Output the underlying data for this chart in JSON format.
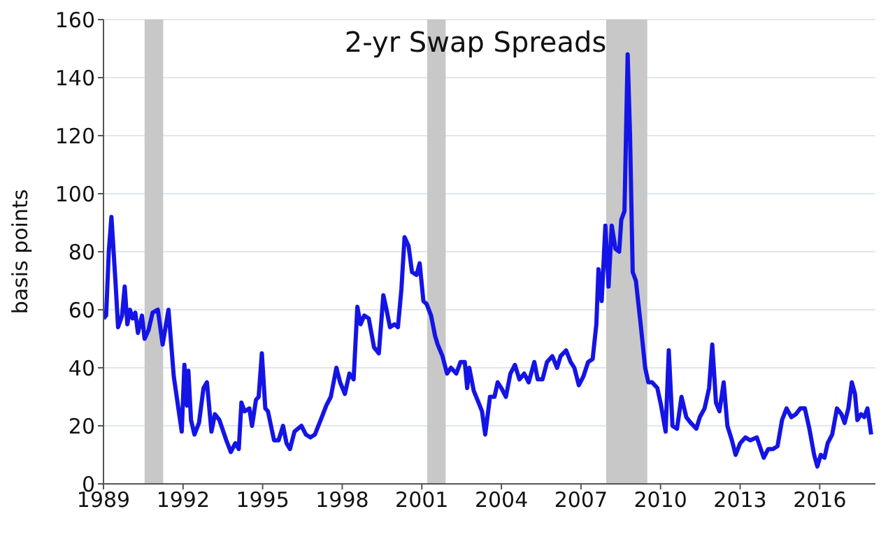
{
  "chart_data": {
    "type": "line",
    "title": "2-yr Swap Spreads",
    "ylabel": "basis points",
    "xlim": [
      1989,
      2018.1
    ],
    "xticks": [
      1989,
      1992,
      1995,
      1998,
      2001,
      2004,
      2007,
      2010,
      2013,
      2016
    ],
    "ylim": [
      0,
      160
    ],
    "yticks": [
      0,
      20,
      40,
      60,
      80,
      100,
      120,
      140,
      160
    ],
    "grid": "y",
    "marker": "none",
    "line_style": "solid",
    "bands": [
      {
        "axis": "x",
        "from": 1990.55,
        "to": 1991.25,
        "color": "#c8c8c8"
      },
      {
        "axis": "x",
        "from": 2001.2,
        "to": 2001.9,
        "color": "#c8c8c8"
      },
      {
        "axis": "x",
        "from": 2007.95,
        "to": 2009.5,
        "color": "#c8c8c8"
      }
    ],
    "series": [
      {
        "color": "#1414e6",
        "x": [
          1989.0,
          1989.1,
          1989.2,
          1989.3,
          1989.45,
          1989.55,
          1989.7,
          1989.8,
          1989.9,
          1990.0,
          1990.1,
          1990.2,
          1990.3,
          1990.45,
          1990.55,
          1990.7,
          1990.85,
          1991.05,
          1991.23,
          1991.45,
          1991.65,
          1991.95,
          1992.05,
          1992.15,
          1992.2,
          1992.3,
          1992.43,
          1992.6,
          1992.77,
          1992.9,
          1993.07,
          1993.2,
          1993.37,
          1993.63,
          1993.8,
          1993.97,
          1994.1,
          1994.2,
          1994.32,
          1994.5,
          1994.6,
          1994.75,
          1994.85,
          1994.97,
          1995.1,
          1995.2,
          1995.43,
          1995.6,
          1995.77,
          1995.9,
          1996.03,
          1996.2,
          1996.46,
          1996.63,
          1996.8,
          1996.97,
          1997.23,
          1997.4,
          1997.57,
          1997.78,
          1997.92,
          1998.1,
          1998.27,
          1998.43,
          1998.57,
          1998.69,
          1998.83,
          1999.0,
          1999.2,
          1999.38,
          1999.55,
          1999.67,
          1999.8,
          1999.97,
          2000.1,
          2000.23,
          2000.35,
          2000.5,
          2000.63,
          2000.8,
          2000.92,
          2001.06,
          2001.18,
          2001.35,
          2001.5,
          2001.6,
          2001.78,
          2001.95,
          2002.1,
          2002.3,
          2002.46,
          2002.62,
          2002.71,
          2002.79,
          2002.96,
          2003.14,
          2003.27,
          2003.39,
          2003.57,
          2003.74,
          2003.86,
          2004.0,
          2004.17,
          2004.34,
          2004.51,
          2004.68,
          2004.86,
          2005.03,
          2005.24,
          2005.37,
          2005.55,
          2005.72,
          2005.92,
          2006.1,
          2006.23,
          2006.44,
          2006.61,
          2006.75,
          2006.92,
          2007.09,
          2007.27,
          2007.44,
          2007.58,
          2007.66,
          2007.78,
          2007.92,
          2008.04,
          2008.16,
          2008.3,
          2008.44,
          2008.52,
          2008.64,
          2008.76,
          2008.85,
          2008.95,
          2009.07,
          2009.25,
          2009.42,
          2009.54,
          2009.68,
          2009.88,
          2010.02,
          2010.19,
          2010.31,
          2010.45,
          2010.62,
          2010.79,
          2010.97,
          2011.14,
          2011.35,
          2011.48,
          2011.66,
          2011.83,
          2011.95,
          2012.09,
          2012.22,
          2012.38,
          2012.52,
          2012.69,
          2012.83,
          2013.0,
          2013.2,
          2013.38,
          2013.63,
          2013.89,
          2014.06,
          2014.24,
          2014.41,
          2014.58,
          2014.75,
          2014.93,
          2015.1,
          2015.27,
          2015.44,
          2015.61,
          2015.79,
          2015.91,
          2016.04,
          2016.18,
          2016.3,
          2016.47,
          2016.65,
          2016.82,
          2016.94,
          2017.08,
          2017.21,
          2017.33,
          2017.42,
          2017.56,
          2017.68,
          2017.8,
          2017.94
        ],
        "values": [
          57,
          58,
          80,
          92,
          70,
          54,
          58,
          68,
          55,
          60,
          57,
          59,
          52,
          58,
          50,
          53,
          59,
          60,
          48,
          60,
          37,
          18,
          41,
          27,
          39,
          22,
          17,
          21,
          33,
          35,
          18,
          24,
          22,
          15,
          11,
          14,
          12,
          28,
          25,
          26,
          20,
          29,
          30,
          45,
          26,
          25,
          15,
          15,
          20,
          14,
          12,
          18,
          20,
          17,
          16,
          17,
          23,
          27,
          30,
          40,
          35,
          31,
          38,
          36,
          61,
          55,
          58,
          57,
          47,
          45,
          65,
          60,
          54,
          55,
          54,
          67,
          85,
          82,
          73,
          72,
          76,
          63,
          62,
          58,
          51,
          48,
          44,
          38,
          40,
          38,
          42,
          42,
          33,
          40,
          32,
          28,
          25,
          17,
          30,
          30,
          35,
          33,
          30,
          38,
          41,
          36,
          38,
          35,
          42,
          36,
          36,
          42,
          44,
          40,
          44,
          46,
          42,
          40,
          34,
          37,
          42,
          43,
          55,
          74,
          63,
          89,
          68,
          89,
          81,
          80,
          91,
          94,
          148,
          120,
          73,
          70,
          55,
          40,
          35,
          35,
          33,
          27,
          18,
          46,
          20,
          19,
          30,
          23,
          21,
          19,
          23,
          26,
          33,
          48,
          28,
          25,
          35,
          20,
          15,
          10,
          14,
          16,
          15,
          16,
          9,
          12,
          12,
          13,
          22,
          26,
          23,
          24,
          26,
          26,
          19,
          10,
          6,
          10,
          9,
          14,
          17,
          26,
          24,
          21,
          26,
          35,
          31,
          22,
          24,
          23,
          26,
          17
        ]
      }
    ]
  }
}
